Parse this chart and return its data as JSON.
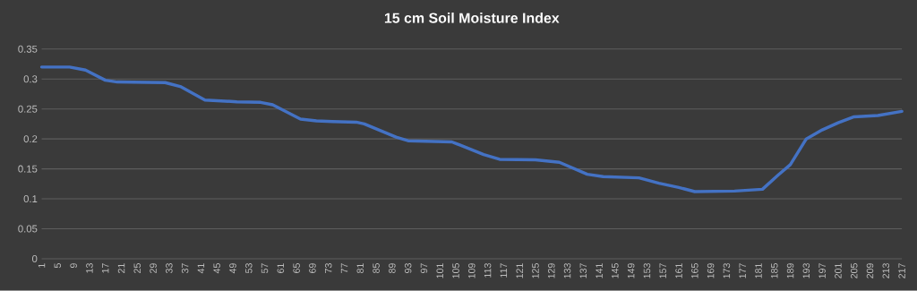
{
  "chart_data": {
    "type": "line",
    "title": "15 cm Soil Moisture Index",
    "x": [
      1,
      8,
      12,
      17,
      20,
      32,
      36,
      42,
      50,
      56,
      59,
      66,
      70,
      74,
      80,
      82,
      90,
      93,
      104,
      106,
      112,
      116,
      125,
      131,
      138,
      142,
      151,
      156,
      161,
      165,
      175,
      182,
      186,
      189,
      193,
      197,
      201,
      205,
      211,
      217
    ],
    "series": [
      {
        "color": "#4472c4",
        "values": [
          0.32,
          0.32,
          0.315,
          0.298,
          0.295,
          0.294,
          0.287,
          0.265,
          0.262,
          0.261,
          0.257,
          0.233,
          0.23,
          0.229,
          0.228,
          0.225,
          0.203,
          0.197,
          0.195,
          0.19,
          0.174,
          0.166,
          0.165,
          0.161,
          0.141,
          0.137,
          0.135,
          0.126,
          0.119,
          0.112,
          0.113,
          0.116,
          0.14,
          0.157,
          0.2,
          0.215,
          0.227,
          0.237,
          0.239,
          0.246
        ]
      }
    ],
    "xlim": [
      1,
      217
    ],
    "xticks": [
      1,
      5,
      9,
      13,
      17,
      21,
      25,
      29,
      33,
      37,
      41,
      45,
      49,
      53,
      57,
      61,
      65,
      69,
      73,
      77,
      81,
      85,
      89,
      93,
      97,
      101,
      105,
      109,
      113,
      117,
      121,
      125,
      129,
      133,
      137,
      141,
      145,
      149,
      153,
      157,
      161,
      165,
      169,
      173,
      177,
      181,
      185,
      189,
      193,
      197,
      201,
      205,
      209,
      213,
      217
    ],
    "ylim": [
      0,
      0.35
    ],
    "yticks": [
      0,
      0.05,
      0.1,
      0.15,
      0.2,
      0.25,
      0.3,
      0.35
    ],
    "grid": "y",
    "marker": "none",
    "line_style": "solid"
  }
}
